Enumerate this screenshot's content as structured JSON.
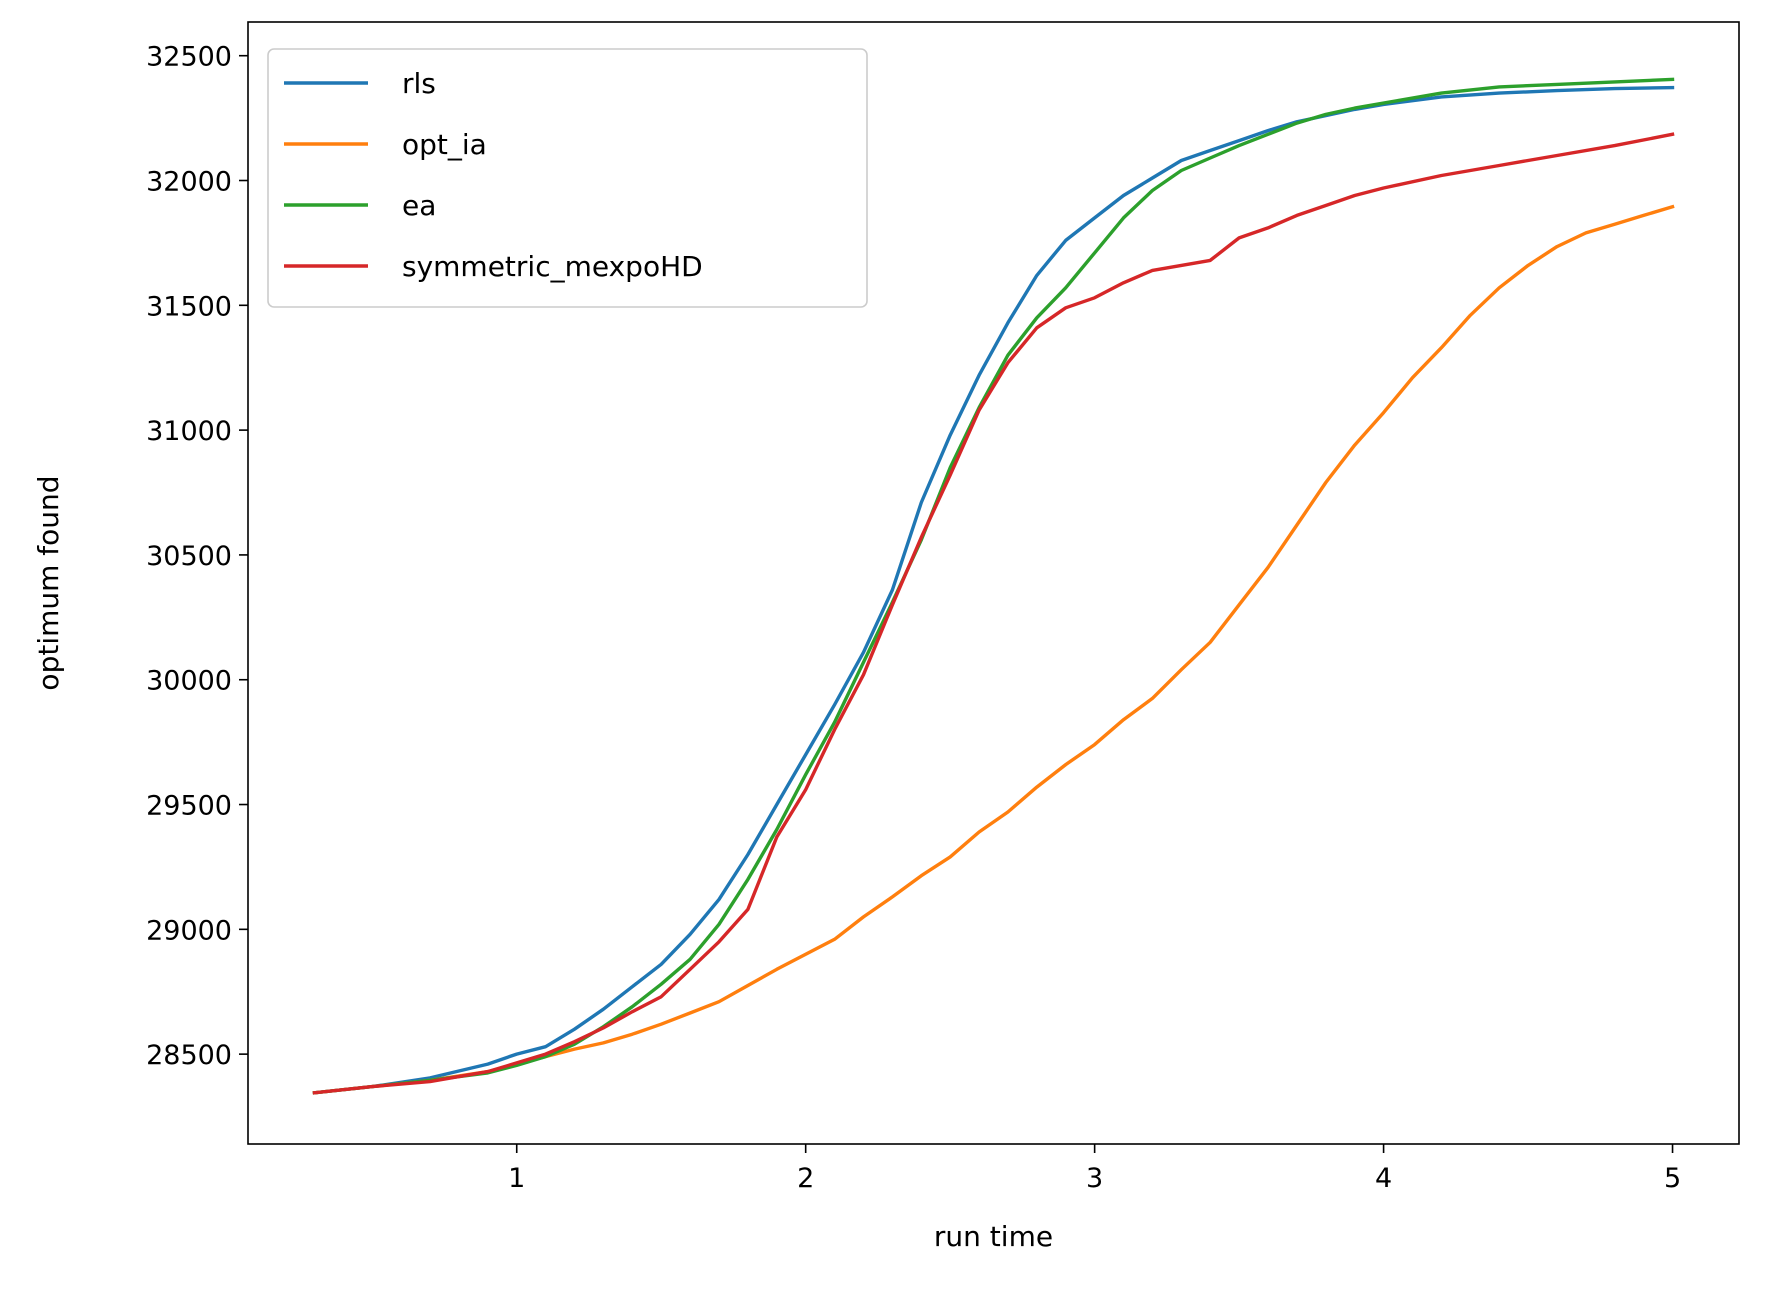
{
  "chart_data": {
    "type": "line",
    "xlabel": "run time",
    "ylabel": "optimum found",
    "xlim": [
      0.07,
      5.23
    ],
    "ylim": [
      28140,
      32635
    ],
    "xticks": [
      1,
      2,
      3,
      4,
      5
    ],
    "xtick_labels": [
      "1",
      "2",
      "3",
      "4",
      "5"
    ],
    "yticks": [
      28500,
      29000,
      29500,
      30000,
      30500,
      31000,
      31500,
      32000,
      32500
    ],
    "ytick_labels": [
      "28500",
      "29000",
      "29500",
      "30000",
      "30500",
      "31000",
      "31500",
      "32000",
      "32500"
    ],
    "grid": false,
    "legend_position": "top-left",
    "series": [
      {
        "name": "rls",
        "color": "#1f77b4",
        "x": [
          0.3,
          0.5,
          0.7,
          0.9,
          1.0,
          1.1,
          1.2,
          1.3,
          1.4,
          1.5,
          1.6,
          1.7,
          1.8,
          1.9,
          2.0,
          2.1,
          2.2,
          2.3,
          2.4,
          2.5,
          2.6,
          2.7,
          2.8,
          2.9,
          3.0,
          3.1,
          3.2,
          3.3,
          3.4,
          3.5,
          3.6,
          3.7,
          3.8,
          3.9,
          4.0,
          4.2,
          4.4,
          4.6,
          4.8,
          5.0
        ],
        "y": [
          28345,
          28370,
          28405,
          28460,
          28500,
          28530,
          28600,
          28680,
          28770,
          28860,
          28980,
          29120,
          29300,
          29500,
          29700,
          29900,
          30110,
          30360,
          30710,
          30980,
          31220,
          31430,
          31620,
          31760,
          31850,
          31940,
          32010,
          32080,
          32120,
          32160,
          32200,
          32235,
          32260,
          32285,
          32305,
          32335,
          32350,
          32360,
          32368,
          32372
        ]
      },
      {
        "name": "opt_ia",
        "color": "#ff7f0e",
        "x": [
          0.3,
          0.5,
          0.7,
          0.9,
          1.0,
          1.1,
          1.2,
          1.3,
          1.4,
          1.5,
          1.6,
          1.7,
          1.8,
          1.9,
          2.0,
          2.1,
          2.2,
          2.3,
          2.4,
          2.5,
          2.6,
          2.7,
          2.8,
          2.9,
          3.0,
          3.1,
          3.2,
          3.3,
          3.4,
          3.5,
          3.6,
          3.7,
          3.8,
          3.9,
          4.0,
          4.1,
          4.2,
          4.3,
          4.4,
          4.5,
          4.6,
          4.7,
          4.8,
          4.9,
          5.0
        ],
        "y": [
          28345,
          28370,
          28395,
          28430,
          28460,
          28490,
          28520,
          28545,
          28580,
          28620,
          28665,
          28710,
          28775,
          28840,
          28900,
          28960,
          29050,
          29130,
          29215,
          29290,
          29390,
          29470,
          29570,
          29660,
          29740,
          29840,
          29925,
          30040,
          30150,
          30300,
          30450,
          30620,
          30790,
          30940,
          31070,
          31210,
          31330,
          31460,
          31570,
          31660,
          31735,
          31790,
          31825,
          31860,
          31895
        ]
      },
      {
        "name": "ea",
        "color": "#2ca02c",
        "x": [
          0.3,
          0.5,
          0.7,
          0.9,
          1.0,
          1.1,
          1.2,
          1.3,
          1.4,
          1.5,
          1.6,
          1.7,
          1.8,
          1.9,
          2.0,
          2.1,
          2.2,
          2.3,
          2.4,
          2.5,
          2.6,
          2.7,
          2.8,
          2.9,
          3.0,
          3.1,
          3.2,
          3.3,
          3.4,
          3.5,
          3.6,
          3.7,
          3.8,
          3.9,
          4.0,
          4.2,
          4.4,
          4.6,
          4.8,
          5.0
        ],
        "y": [
          28345,
          28370,
          28395,
          28425,
          28455,
          28490,
          28540,
          28610,
          28690,
          28780,
          28880,
          29020,
          29200,
          29400,
          29620,
          29830,
          30070,
          30310,
          30560,
          30850,
          31090,
          31300,
          31450,
          31570,
          31710,
          31850,
          31960,
          32040,
          32090,
          32140,
          32185,
          32230,
          32265,
          32290,
          32310,
          32350,
          32375,
          32385,
          32395,
          32405
        ]
      },
      {
        "name": "symmetric_mexpoHD",
        "color": "#d62728",
        "x": [
          0.3,
          0.5,
          0.7,
          0.9,
          1.0,
          1.1,
          1.2,
          1.3,
          1.4,
          1.5,
          1.6,
          1.7,
          1.8,
          1.9,
          2.0,
          2.1,
          2.2,
          2.3,
          2.4,
          2.5,
          2.6,
          2.7,
          2.8,
          2.9,
          3.0,
          3.1,
          3.2,
          3.3,
          3.4,
          3.5,
          3.6,
          3.7,
          3.8,
          3.9,
          4.0,
          4.2,
          4.4,
          4.6,
          4.8,
          5.0
        ],
        "y": [
          28345,
          28370,
          28390,
          28430,
          28465,
          28500,
          28550,
          28605,
          28670,
          28730,
          28840,
          28950,
          29080,
          29370,
          29560,
          29800,
          30020,
          30300,
          30570,
          30820,
          31080,
          31270,
          31410,
          31490,
          31530,
          31590,
          31640,
          31660,
          31680,
          31770,
          31810,
          31860,
          31900,
          31940,
          31970,
          32020,
          32060,
          32100,
          32140,
          32185
        ]
      }
    ]
  }
}
